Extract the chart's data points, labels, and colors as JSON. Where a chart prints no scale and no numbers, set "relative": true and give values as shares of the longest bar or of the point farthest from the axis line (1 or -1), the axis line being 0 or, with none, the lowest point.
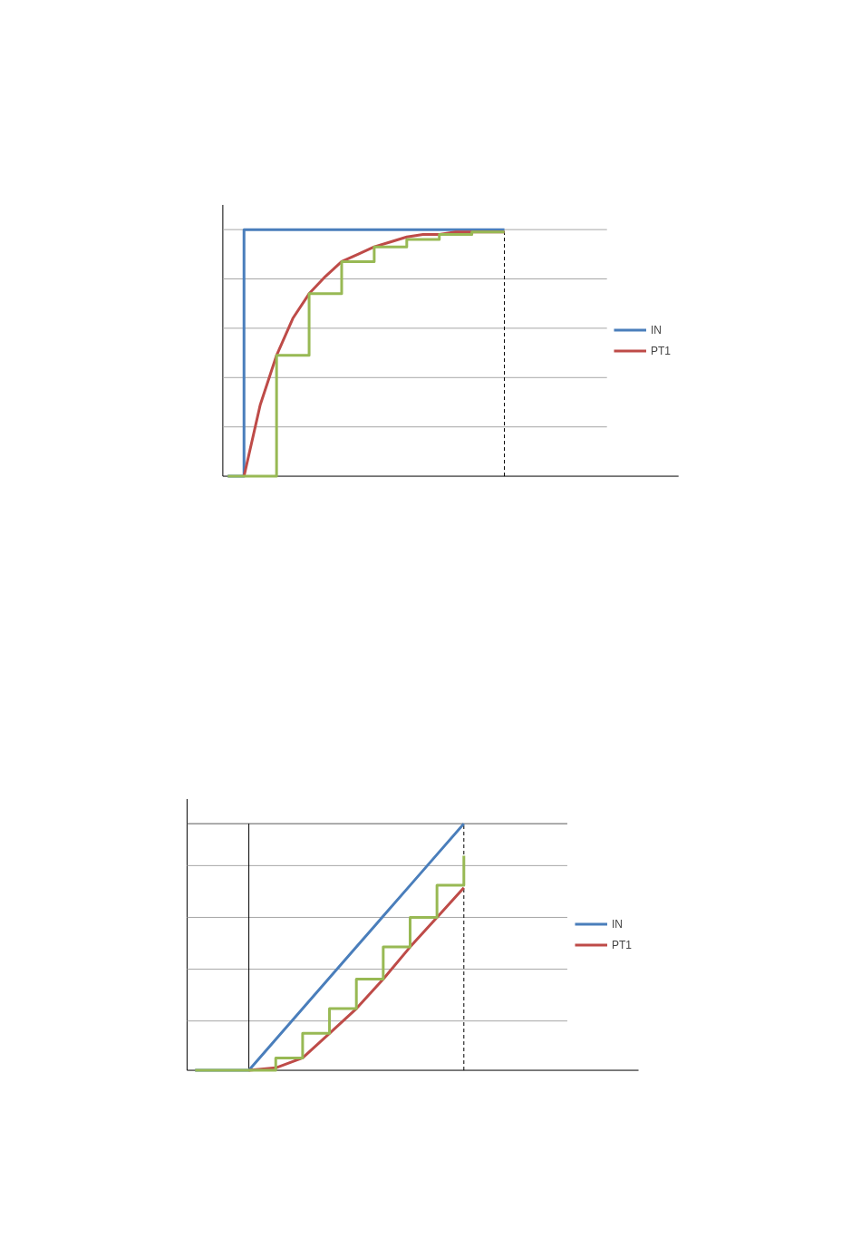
{
  "chart_data": [
    {
      "type": "line",
      "relative": true,
      "categories": [
        null,
        null,
        null,
        null,
        null,
        null,
        null,
        null,
        null,
        null,
        null,
        null,
        null,
        null,
        null,
        null,
        null,
        null
      ],
      "series": [
        {
          "name": "IN",
          "type": "step",
          "color": "#4a7ebb",
          "values": [
            0,
            1,
            1,
            1,
            1,
            1,
            1,
            1,
            1,
            1,
            1,
            1,
            1,
            1,
            1,
            1,
            1,
            1
          ]
        },
        {
          "name": "PT1",
          "color": "#be4b48",
          "values": [
            null,
            0,
            0.29,
            0.49,
            0.64,
            0.74,
            0.81,
            0.87,
            0.9,
            0.93,
            0.95,
            0.97,
            0.98,
            0.98,
            0.99,
            0.99,
            0.99,
            0.99
          ]
        },
        {
          "type": "step",
          "color": "#98b954",
          "values": [
            0,
            0,
            0,
            0.49,
            0.49,
            0.74,
            0.74,
            0.87,
            0.87,
            0.93,
            0.93,
            0.96,
            0.96,
            0.98,
            0.98,
            0.99,
            0.99,
            0.99
          ]
        }
      ],
      "ref_lines": [
        {
          "axis": "y",
          "value": 0.2,
          "color": "#a6a6a6"
        },
        {
          "axis": "y",
          "value": 0.4,
          "color": "#a6a6a6"
        },
        {
          "axis": "y",
          "value": 0.6,
          "color": "#a6a6a6"
        },
        {
          "axis": "y",
          "value": 0.8,
          "color": "#a6a6a6"
        },
        {
          "axis": "y",
          "value": 1.0,
          "color": "#a6a6a6"
        }
      ],
      "legend": "right"
    },
    {
      "type": "line",
      "relative": true,
      "categories": [
        null,
        null,
        null,
        null,
        null,
        null,
        null,
        null,
        null,
        null,
        null
      ],
      "series": [
        {
          "name": "IN",
          "color": "#4a7ebb",
          "values": [
            0,
            0,
            0,
            0.125,
            0.25,
            0.375,
            0.5,
            0.625,
            0.75,
            0.875,
            1.0
          ]
        },
        {
          "name": "PT1",
          "color": "#be4b48",
          "values": [
            null,
            null,
            0,
            0.01,
            0.05,
            0.15,
            0.25,
            0.37,
            0.5,
            0.62,
            0.74
          ]
        },
        {
          "type": "step",
          "color": "#98b954",
          "values": [
            0,
            0,
            0,
            0.05,
            0.15,
            0.25,
            0.37,
            0.5,
            0.62,
            0.75,
            0.87
          ]
        }
      ],
      "ref_lines": [
        {
          "axis": "y",
          "value": 0.2,
          "color": "#a6a6a6"
        },
        {
          "axis": "y",
          "value": 0.41,
          "color": "#a6a6a6"
        },
        {
          "axis": "y",
          "value": 0.62,
          "color": "#a6a6a6"
        },
        {
          "axis": "y",
          "value": 0.83,
          "color": "#a6a6a6"
        },
        {
          "axis": "y",
          "value": 1.0,
          "color": "#595959"
        }
      ],
      "legend": "right"
    }
  ]
}
